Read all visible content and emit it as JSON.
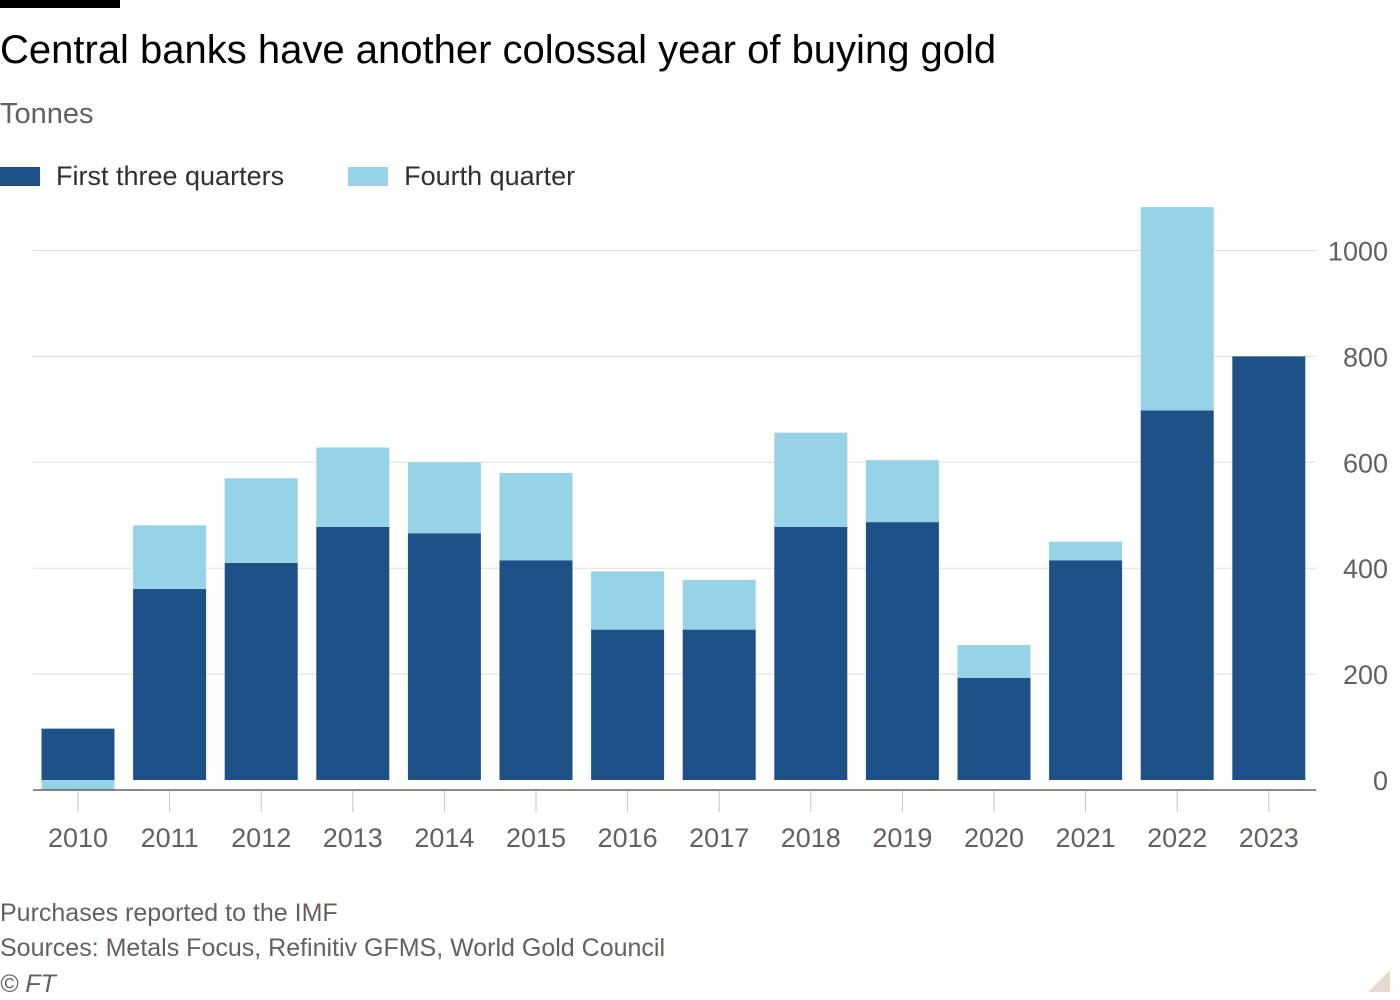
{
  "header": {
    "title": "Central banks have another colossal year of buying gold",
    "subtitle": "Tonnes"
  },
  "footer": {
    "note": "Purchases reported to the IMF",
    "source": "Sources: Metals Focus, Refinitiv GFMS, World Gold Council",
    "copyright": "© FT"
  },
  "colors": {
    "first_three_quarters": "#1f5189",
    "fourth_quarter": "#96d3e6",
    "gridline": "#e2ddd8",
    "axis": "#66605c",
    "text": "#66605c"
  },
  "chart_data": {
    "type": "bar",
    "stacked": true,
    "title": "Central banks have another colossal year of buying gold",
    "ylabel": "Tonnes",
    "xlabel": "",
    "categories": [
      "2010",
      "2011",
      "2012",
      "2013",
      "2014",
      "2015",
      "2016",
      "2017",
      "2018",
      "2019",
      "2020",
      "2021",
      "2022",
      "2023"
    ],
    "series": [
      {
        "name": "First three quarters",
        "values": [
          97,
          361,
          410,
          478,
          466,
          415,
          284,
          284,
          478,
          487,
          193,
          415,
          698,
          800
        ]
      },
      {
        "name": "Fourth quarter",
        "values": [
          -18,
          120,
          160,
          150,
          134,
          165,
          110,
          94,
          178,
          117,
          62,
          35,
          384,
          0
        ]
      }
    ],
    "ylim": [
      -20,
      1100
    ],
    "yticks": [
      0,
      200,
      400,
      600,
      800,
      1000
    ],
    "ytick_labels": [
      "0",
      "200",
      "400",
      "600",
      "800",
      "1000"
    ],
    "grid": true,
    "y_axis_position": "right",
    "legend_position": "top-left"
  }
}
